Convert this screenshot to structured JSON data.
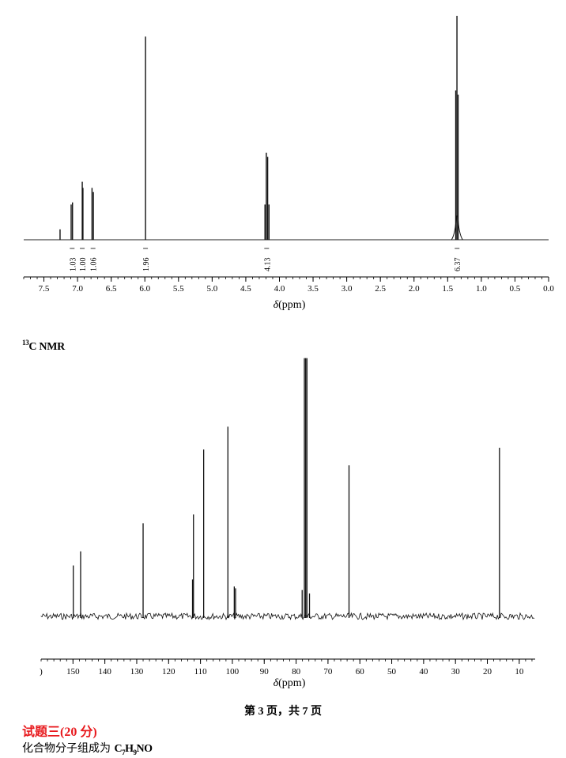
{
  "chart_data": [
    {
      "type": "line",
      "xlabel_prefix": "δ",
      "xlabel_unit": "(ppm)",
      "xlim": [
        7.8,
        0.0
      ],
      "xticks": [
        7.5,
        7.0,
        6.5,
        6.0,
        5.5,
        5.0,
        4.5,
        4.0,
        3.5,
        3.0,
        2.5,
        2.0,
        1.5,
        1.0,
        0.5,
        0.0
      ],
      "xtick_labels": [
        "7.5",
        "7.0",
        "6.5",
        "6.0",
        "5.5",
        "5.0",
        "4.5",
        "4.0",
        "3.5",
        "3.0",
        "2.5",
        "2.0",
        "1.5",
        "1.0",
        "0.5",
        "0.0"
      ],
      "peaks": [
        {
          "ppm": 7.26,
          "height": 0.05
        },
        {
          "ppm": 7.095,
          "height": 0.17
        },
        {
          "ppm": 7.075,
          "height": 0.18
        },
        {
          "ppm": 6.93,
          "height": 0.28
        },
        {
          "ppm": 6.92,
          "height": 0.25
        },
        {
          "ppm": 6.785,
          "height": 0.25
        },
        {
          "ppm": 6.765,
          "height": 0.23
        },
        {
          "ppm": 5.99,
          "height": 0.98
        },
        {
          "ppm": 4.215,
          "height": 0.17
        },
        {
          "ppm": 4.195,
          "height": 0.42
        },
        {
          "ppm": 4.175,
          "height": 0.4
        },
        {
          "ppm": 4.155,
          "height": 0.17
        },
        {
          "ppm": 1.38,
          "height": 0.72
        },
        {
          "ppm": 1.362,
          "height": 1.08
        },
        {
          "ppm": 1.345,
          "height": 0.7
        }
      ],
      "integrals": [
        {
          "ppm": 7.08,
          "label": "1.03"
        },
        {
          "ppm": 6.93,
          "label": "1.00"
        },
        {
          "ppm": 6.77,
          "label": "1.06"
        },
        {
          "ppm": 5.99,
          "label": "1.96"
        },
        {
          "ppm": 4.19,
          "label": "4.13"
        },
        {
          "ppm": 1.36,
          "label": "6.37"
        }
      ]
    },
    {
      "type": "line",
      "title": "C NMR",
      "title_sup": "13",
      "xlabel_prefix": "δ",
      "xlabel_unit": "(ppm)",
      "xlim": [
        160,
        5
      ],
      "xticks": [
        150,
        140,
        130,
        120,
        110,
        100,
        90,
        80,
        70,
        60,
        50,
        40,
        30,
        20,
        10
      ],
      "xtick_labels": [
        "150",
        "140",
        "130",
        "120",
        "110",
        "100",
        "90",
        "80",
        "70",
        "60",
        "50",
        "40",
        "30",
        "20",
        "10"
      ],
      "edge_label": ")",
      "peaks": [
        {
          "ppm": 149.9,
          "height": 0.29
        },
        {
          "ppm": 147.6,
          "height": 0.37
        },
        {
          "ppm": 128.0,
          "height": 0.53
        },
        {
          "ppm": 112.5,
          "height": 0.21
        },
        {
          "ppm": 112.2,
          "height": 0.58
        },
        {
          "ppm": 109.0,
          "height": 0.95
        },
        {
          "ppm": 101.4,
          "height": 1.08
        },
        {
          "ppm": 99.4,
          "height": 0.17
        },
        {
          "ppm": 99.0,
          "height": 0.16
        },
        {
          "ppm": 78.1,
          "height": 0.15
        },
        {
          "ppm": 77.4,
          "height": 1.47
        },
        {
          "ppm": 77.0,
          "height": 1.47
        },
        {
          "ppm": 76.6,
          "height": 1.47
        },
        {
          "ppm": 75.8,
          "height": 0.13
        },
        {
          "ppm": 63.4,
          "height": 0.86
        },
        {
          "ppm": 16.2,
          "height": 0.96
        }
      ]
    }
  ],
  "footer": {
    "page_text": "第 3 页，共 7 页"
  },
  "question": {
    "title": "试题三(20 分)"
  },
  "formula_line": {
    "prefix": "化合物分子组成为 ",
    "parts": [
      "C",
      "7",
      "H",
      "9",
      "NO"
    ]
  }
}
